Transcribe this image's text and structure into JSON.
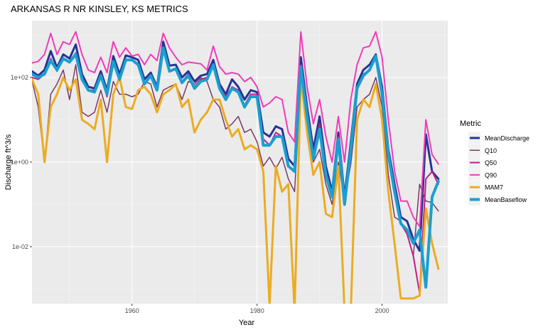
{
  "chart_data": {
    "type": "line",
    "title": "ARKANSAS R NR KINSLEY, KS  METRICS",
    "xlabel": "Year",
    "ylabel": "Discharge ft^3/s",
    "y_scale": "log10",
    "xlim": [
      1944,
      2010.5
    ],
    "ylim": [
      0.00045,
      2200
    ],
    "x_ticks": [
      1960,
      1980,
      2000
    ],
    "x_tick_labels": [
      "1960",
      "1980",
      "2000"
    ],
    "y_ticks": [
      0.01,
      1,
      100
    ],
    "y_tick_labels": [
      "1e-02",
      "1e+00",
      "1e+02"
    ],
    "grid": true,
    "background": "#ebebeb",
    "legend": {
      "title": "Metric",
      "position": "right"
    },
    "x": [
      1944,
      1945,
      1946,
      1947,
      1948,
      1949,
      1950,
      1951,
      1952,
      1953,
      1954,
      1955,
      1956,
      1957,
      1958,
      1959,
      1960,
      1961,
      1962,
      1963,
      1964,
      1965,
      1966,
      1967,
      1968,
      1969,
      1970,
      1971,
      1972,
      1973,
      1974,
      1975,
      1976,
      1977,
      1978,
      1979,
      1980,
      1981,
      1982,
      1983,
      1984,
      1985,
      1986,
      1987,
      1988,
      1989,
      1990,
      1991,
      1992,
      1993,
      1994,
      1995,
      1996,
      1997,
      1998,
      1999,
      2000,
      2001,
      2002,
      2003,
      2004,
      2005,
      2006,
      2007,
      2008,
      2009
    ],
    "series": [
      {
        "name": "MeanDischarge",
        "color": "#253494",
        "width": 3,
        "values": [
          140,
          110,
          150,
          420,
          170,
          350,
          280,
          600,
          120,
          60,
          55,
          140,
          50,
          320,
          120,
          330,
          300,
          260,
          90,
          130,
          60,
          700,
          190,
          200,
          100,
          140,
          80,
          110,
          120,
          260,
          70,
          40,
          90,
          60,
          30,
          50,
          45,
          5,
          4,
          7,
          6,
          1.2,
          0.8,
          300,
          20,
          2,
          12,
          0.8,
          0.2,
          5,
          0.15,
          3,
          70,
          150,
          200,
          350,
          60,
          2,
          0.3,
          0.05,
          0.04,
          0.015,
          0.008,
          4.5,
          0.6,
          0.4
        ]
      },
      {
        "name": "Q10",
        "color": "#7a3a63",
        "width": 1.5,
        "values": [
          85,
          20,
          1,
          40,
          70,
          150,
          30,
          200,
          15,
          12,
          15,
          50,
          15,
          80,
          40,
          40,
          35,
          40,
          80,
          70,
          20,
          50,
          60,
          70,
          30,
          80,
          70,
          100,
          80,
          30,
          20,
          6,
          8,
          12,
          5,
          6,
          3,
          0.8,
          1.3,
          0.7,
          1.3,
          0.4,
          0.2,
          80,
          10,
          1,
          2,
          0.3,
          0.1,
          1,
          0.12,
          0.9,
          20,
          30,
          40,
          100,
          20,
          0.5,
          0.05,
          0.04,
          0.02,
          0.006,
          0.3,
          0.12,
          0.11,
          0.07
        ]
      },
      {
        "name": "Q50",
        "color": "#c51b8a",
        "width": 2,
        "values": [
          100,
          90,
          120,
          280,
          140,
          260,
          240,
          380,
          100,
          50,
          50,
          120,
          35,
          250,
          100,
          260,
          260,
          200,
          70,
          110,
          50,
          520,
          140,
          160,
          80,
          120,
          60,
          90,
          100,
          200,
          60,
          35,
          60,
          50,
          22,
          40,
          40,
          3.5,
          2.5,
          5,
          4,
          0.8,
          0.6,
          200,
          15,
          1.5,
          8,
          0.6,
          0.15,
          4,
          0.12,
          2.5,
          60,
          120,
          150,
          280,
          50,
          1.5,
          0.2,
          0.035,
          0.02,
          0.006,
          0.0008,
          0.4,
          0.6,
          0.3
        ]
      },
      {
        "name": "Q90",
        "color": "#f03cba",
        "width": 2,
        "values": [
          220,
          240,
          350,
          1100,
          350,
          700,
          600,
          1200,
          350,
          150,
          130,
          300,
          130,
          700,
          300,
          500,
          320,
          350,
          200,
          350,
          250,
          1100,
          500,
          300,
          200,
          230,
          220,
          210,
          150,
          550,
          180,
          120,
          130,
          120,
          80,
          100,
          60,
          20,
          25,
          35,
          30,
          5,
          3,
          1200,
          60,
          8,
          30,
          4,
          1,
          12,
          1,
          30,
          200,
          500,
          550,
          1200,
          300,
          10,
          0.6,
          0.12,
          0.12,
          0.05,
          0.03,
          10,
          1.5,
          0.9
        ]
      },
      {
        "name": "MAM7",
        "color": "#ebac21",
        "width": 3,
        "values": [
          90,
          40,
          1,
          20,
          40,
          100,
          50,
          90,
          10,
          8,
          6,
          30,
          1,
          40,
          100,
          20,
          18,
          50,
          60,
          40,
          15,
          40,
          50,
          70,
          20,
          30,
          5,
          10,
          15,
          30,
          30,
          10,
          4,
          6,
          2,
          2.5,
          2,
          0.6,
          0.0004,
          0.8,
          0.2,
          0.3,
          0.0003,
          100,
          5,
          0.5,
          1,
          0.06,
          0.05,
          0.8,
          0.0003,
          0.0003,
          10,
          30,
          20,
          70,
          10,
          0.2,
          0.012,
          0.0006,
          0.0006,
          0.0006,
          0.0007,
          0.08,
          0.012,
          0.003
        ]
      },
      {
        "name": "MeanBaseflow",
        "color": "#1a9fd1",
        "width": 4,
        "values": [
          120,
          100,
          120,
          250,
          150,
          280,
          230,
          350,
          90,
          50,
          45,
          110,
          40,
          240,
          90,
          260,
          260,
          200,
          70,
          110,
          50,
          500,
          140,
          160,
          75,
          110,
          55,
          80,
          90,
          200,
          55,
          30,
          55,
          45,
          20,
          35,
          35,
          2.5,
          2.5,
          4,
          4,
          0.8,
          0.6,
          180,
          12,
          1.2,
          6,
          0.5,
          0.15,
          3.5,
          0.1,
          2,
          55,
          110,
          150,
          320,
          40,
          1.5,
          0.2,
          0.035,
          0.025,
          0.012,
          0.025,
          0.0011,
          0.15,
          0.35
        ]
      }
    ]
  }
}
